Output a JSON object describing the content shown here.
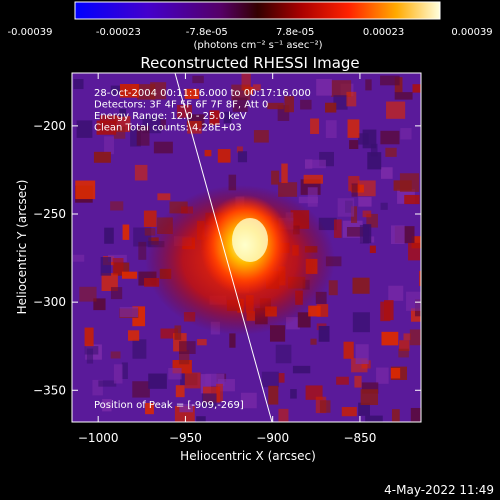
{
  "colorbar": {
    "ticks": [
      "-0.00039",
      "-0.00023",
      "-7.8e-05",
      "7.8e-05",
      "0.00023",
      "0.00039"
    ],
    "units_label": "(photons cm⁻² s⁻¹ asec⁻²)"
  },
  "image": {
    "title": "Reconstructed RHESSI Image",
    "info_lines": [
      "28-Oct-2004 00:11:16.000 to 00:17:16.000",
      "Detectors: 3F 4F 5F 6F 7F 8F, Att 0",
      "Energy Range: 12.0 - 25.0 keV",
      "Clean     Total counts: 4.28E+03"
    ],
    "peak_label": "Position of Peak = [-909,-269]"
  },
  "axes": {
    "xlabel": "Heliocentric X (arcsec)",
    "ylabel": "Heliocentric Y (arcsec)",
    "xlim": [
      -1015,
      -815
    ],
    "ylim": [
      -368,
      -170
    ],
    "xticks": [
      -1000,
      -950,
      -900,
      -850
    ],
    "yticks": [
      -200,
      -250,
      -300,
      -350
    ]
  },
  "footer": {
    "date": "4-May-2022 11:49"
  }
}
